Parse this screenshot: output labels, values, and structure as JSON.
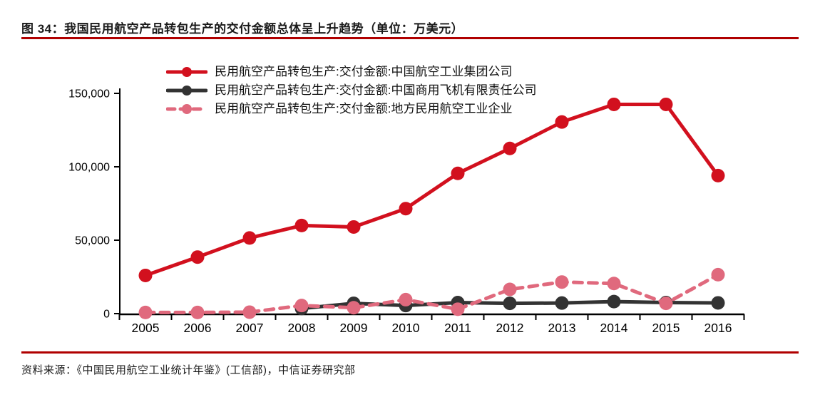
{
  "page": {
    "title": "图 34：我国民用航空产品转包生产的交付金额总体呈上升趋势（单位：万美元）",
    "source": "资料来源：《中国民用航空工业统计年鉴》(工信部)，中信证券研究部",
    "rule_color": "#b00000"
  },
  "chart_data": {
    "type": "line",
    "title": "我国民用航空产品转包生产的交付金额总体呈上升趋势",
    "unit": "万美元",
    "categories": [
      "2005",
      "2006",
      "2007",
      "2008",
      "2009",
      "2010",
      "2011",
      "2012",
      "2013",
      "2014",
      "2015",
      "2016"
    ],
    "series": [
      {
        "name": "民用航空产品转包生产:交付金额:中国航空工业集团公司",
        "color": "#d2101e",
        "line_style": "solid",
        "values": [
          26000,
          38500,
          51500,
          60000,
          59000,
          71500,
          95500,
          112500,
          130500,
          142500,
          142500,
          94000
        ]
      },
      {
        "name": "民用航空产品转包生产:交付金额:中国商用飞机有限责任公司",
        "color": "#333333",
        "line_style": "solid",
        "values": [
          null,
          null,
          null,
          3500,
          7000,
          5500,
          7500,
          7000,
          7200,
          8200,
          7500,
          7300
        ]
      },
      {
        "name": "民用航空产品转包生产:交付金额:地方民用航空工业企业",
        "color": "#e0697d",
        "line_style": "dashed",
        "values": [
          800,
          800,
          1000,
          5500,
          4000,
          9500,
          3000,
          16500,
          21500,
          20500,
          7000,
          26500
        ]
      }
    ],
    "xlabel": "",
    "ylabel": "",
    "ylim": [
      0,
      150000
    ],
    "yticks": [
      0,
      50000,
      100000,
      150000
    ],
    "ytick_labels": [
      "0",
      "50,000",
      "100,000",
      "150,000"
    ],
    "grid": false,
    "legend_position": "top-left-inside"
  }
}
